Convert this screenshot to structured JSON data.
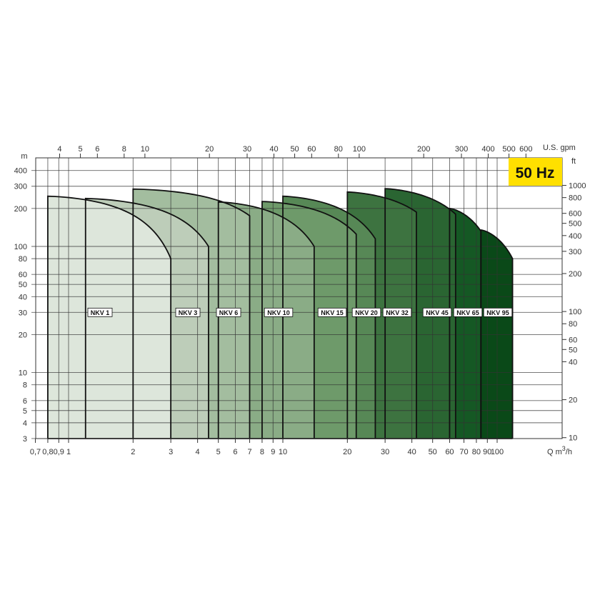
{
  "chart_data": {
    "type": "area",
    "badge": "50 Hz",
    "badge_color": "#ffe000",
    "x_axis": {
      "label": "Q m3/h",
      "label_main": "Q m",
      "label_sup": "3",
      "label_tail": "/h",
      "scale": "log",
      "range": [
        0.7,
        200
      ],
      "ticks": [
        0.7,
        0.8,
        0.9,
        1,
        2,
        3,
        4,
        5,
        6,
        7,
        8,
        9,
        10,
        20,
        30,
        40,
        50,
        60,
        70,
        80,
        90,
        100
      ],
      "tick_labels": [
        "0,7",
        "0,8",
        "0,9",
        "1",
        "2",
        "3",
        "4",
        "5",
        "6",
        "7",
        "8",
        "9",
        "10",
        "20",
        "30",
        "40",
        "50",
        "60",
        "70",
        "80",
        "90",
        "100"
      ]
    },
    "x2_axis": {
      "label": "U.S. gpm",
      "scale": "log",
      "ticks": [
        4,
        5,
        6,
        8,
        10,
        20,
        30,
        40,
        50,
        60,
        80,
        100,
        200,
        300,
        400,
        500,
        600
      ],
      "tick_labels": [
        "4",
        "5",
        "6",
        "8",
        "10",
        "20",
        "30",
        "40",
        "50",
        "60",
        "80",
        "100",
        "200",
        "300",
        "400",
        "500",
        "600"
      ]
    },
    "y_axis": {
      "label": "m",
      "scale": "log",
      "range": [
        3,
        510
      ],
      "ticks": [
        3,
        4,
        5,
        6,
        8,
        10,
        20,
        30,
        40,
        50,
        60,
        80,
        100,
        200,
        300,
        400
      ],
      "tick_labels": [
        "3",
        "4",
        "5",
        "6",
        "8",
        "10",
        "20",
        "30",
        "40",
        "50",
        "60",
        "80",
        "100",
        "200",
        "300",
        "400"
      ]
    },
    "y2_axis": {
      "label": "ft",
      "scale": "log",
      "ticks": [
        10,
        20,
        40,
        50,
        60,
        80,
        100,
        200,
        300,
        400,
        500,
        600,
        800,
        1000
      ],
      "tick_labels": [
        "10",
        "20",
        "40",
        "50",
        "60",
        "80",
        "100",
        "200",
        "300",
        "400",
        "500",
        "600",
        "800",
        "1000"
      ]
    },
    "grid": true,
    "series": [
      {
        "name": "NKV 1",
        "q_min": 0.8,
        "q_max": 3,
        "h_max": 250,
        "h_end": 80,
        "color": "#dde6db"
      },
      {
        "name": "NKV 3",
        "q_min": 1.2,
        "q_max": 4.5,
        "h_max": 240,
        "h_end": 100,
        "color": "#bdcdb9"
      },
      {
        "name": "NKV 6",
        "q_min": 2,
        "q_max": 7,
        "h_max": 285,
        "h_end": 175,
        "color": "#a3bd9f"
      },
      {
        "name": "NKV 10",
        "q_min": 5,
        "q_max": 14,
        "h_max": 225,
        "h_end": 100,
        "color": "#8aac86"
      },
      {
        "name": "NKV 15",
        "q_min": 8,
        "q_max": 22,
        "h_max": 227,
        "h_end": 125,
        "color": "#6e9a6a"
      },
      {
        "name": "NKV 20",
        "q_min": 10,
        "q_max": 27,
        "h_max": 250,
        "h_end": 115,
        "color": "#578856"
      },
      {
        "name": "NKV 32",
        "q_min": 20,
        "q_max": 42,
        "h_max": 270,
        "h_end": 187,
        "color": "#3d7340"
      },
      {
        "name": "NKV 45",
        "q_min": 30,
        "q_max": 64,
        "h_max": 287,
        "h_end": 180,
        "color": "#2a6532"
      },
      {
        "name": "NKV 65",
        "q_min": 60,
        "q_max": 84,
        "h_max": 200,
        "h_end": 132,
        "color": "#155824"
      },
      {
        "name": "NKV 95",
        "q_min": 84,
        "q_max": 118,
        "h_max": 135,
        "h_end": 80,
        "color": "#0a4918"
      }
    ]
  }
}
